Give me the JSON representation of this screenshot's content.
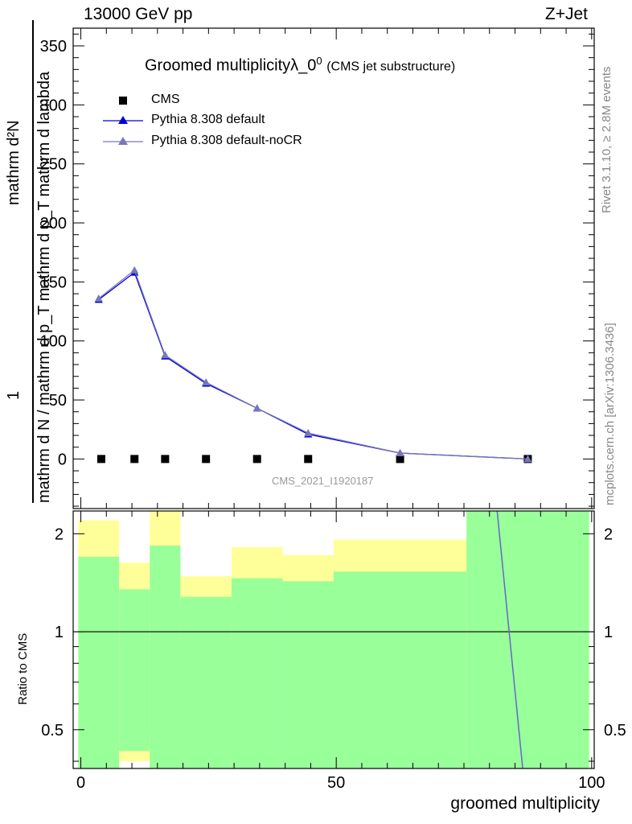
{
  "header": {
    "energy": "13000 GeV pp",
    "process": "Z+Jet"
  },
  "side_labels": {
    "rivet": "Rivet 3.1.10, ≥ 2.8M events",
    "mcplots": "mcplots.cern.ch [arXiv:1306.3436]"
  },
  "watermark": "CMS_2021_I1920187",
  "chart_data": [
    {
      "type": "line",
      "title": "Groomed multiplicityλ_0",
      "title_superscript": "0",
      "subtitle": "(CMS jet substructure)",
      "ylabel_numerator": "mathrm d²N",
      "ylabel_denominator": "mathrm d N / mathrm d p_T mathrm d p_T mathrm d lambda",
      "ylabel_prefix": "1",
      "xlim": [
        -1.5,
        100.5
      ],
      "ylim": [
        -42,
        365
      ],
      "yticks": [
        0,
        50,
        100,
        150,
        200,
        250,
        300,
        350
      ],
      "legend_position": "top-left",
      "series": [
        {
          "name": "CMS",
          "marker": "square",
          "color": "#000000",
          "x": [
            4,
            10.5,
            16.5,
            24.5,
            34.5,
            44.5,
            62.5,
            87.5
          ],
          "y": [
            0,
            0,
            0,
            0,
            0,
            0,
            0,
            0
          ]
        },
        {
          "name": "Pythia 8.308 default",
          "marker": "triangle",
          "color": "#0000cc",
          "x": [
            3.5,
            10.5,
            16.5,
            24.5,
            34.5,
            44.5,
            62.5,
            87.5
          ],
          "y": [
            135,
            158,
            87,
            64,
            43,
            21,
            5,
            0
          ]
        },
        {
          "name": "Pythia 8.308 default-noCR",
          "marker": "triangle",
          "color": "#7777bb",
          "x": [
            3.5,
            10.5,
            16.5,
            24.5,
            34.5,
            44.5,
            62.5,
            87.5
          ],
          "y": [
            136,
            160,
            88,
            65,
            43,
            22,
            5,
            0
          ]
        }
      ]
    },
    {
      "type": "ratio",
      "ylabel": "Ratio to CMS",
      "xlabel": "groomed multiplicity",
      "xticks": [
        0,
        50,
        100
      ],
      "yticks": [
        0.5,
        1,
        2
      ],
      "yticks_labels": [
        "0.5",
        "1",
        "2"
      ],
      "ylim": [
        0.38,
        2.35
      ],
      "xlim": [
        -1.5,
        100.5
      ],
      "bands": [
        {
          "x0": -0.5,
          "x1": 7.5,
          "green": [
            0.3,
            1.7
          ],
          "yellow": [
            0.3,
            2.2
          ]
        },
        {
          "x0": 7.5,
          "x1": 13.5,
          "green": [
            0.43,
            1.35
          ],
          "yellow": [
            0.4,
            1.63
          ]
        },
        {
          "x0": 13.5,
          "x1": 19.5,
          "green": [
            0.3,
            1.84
          ],
          "yellow": [
            0.3,
            2.4
          ]
        },
        {
          "x0": 19.5,
          "x1": 29.5,
          "green": [
            0.3,
            1.28
          ],
          "yellow": [
            0.6,
            1.48
          ]
        },
        {
          "x0": 29.5,
          "x1": 39.5,
          "green": [
            0.3,
            1.46
          ],
          "yellow": [
            0.3,
            1.82
          ]
        },
        {
          "x0": 39.5,
          "x1": 49.5,
          "green": [
            0.3,
            1.43
          ],
          "yellow": [
            0.3,
            1.72
          ]
        },
        {
          "x0": 49.5,
          "x1": 75.5,
          "green": [
            0.3,
            1.53
          ],
          "yellow": [
            0.3,
            1.92
          ]
        },
        {
          "x0": 75.5,
          "x1": 99.5,
          "green": [
            0.3,
            2.5
          ],
          "yellow": [
            0.3,
            2.5
          ]
        }
      ],
      "ratio_line": {
        "x": [
          81.5,
          86.5
        ],
        "y": [
          2.35,
          0.38
        ]
      }
    }
  ]
}
